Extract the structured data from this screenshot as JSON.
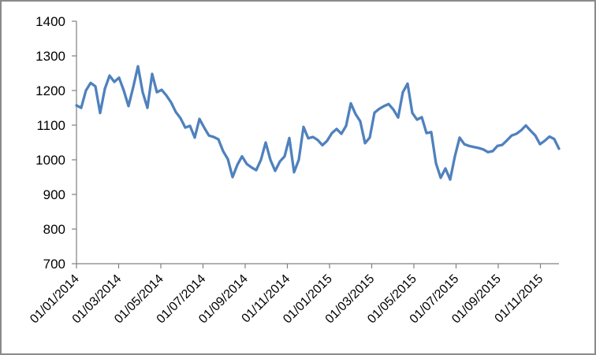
{
  "chart": {
    "background": "#FFFFFF",
    "border_color": "#8A8A8A"
  },
  "chart_data": {
    "type": "line",
    "title": "",
    "xlabel": "",
    "ylabel": "",
    "legend": "none",
    "grid": false,
    "ylim": [
      700,
      1400
    ],
    "y_tick_step": 100,
    "y_tick_labels": [
      "700",
      "800",
      "900",
      "1000",
      "1100",
      "1200",
      "1300",
      "1400"
    ],
    "x_tick_labels": [
      "01/01/2014",
      "01/03/2014",
      "01/05/2014",
      "01/07/2014",
      "01/09/2014",
      "01/11/2014",
      "01/01/2015",
      "01/03/2015",
      "01/05/2015",
      "01/07/2015",
      "01/09/2015",
      "01/11/2015"
    ],
    "axis_color": "#808080",
    "label_color": "#000000",
    "series": [
      {
        "name": "",
        "color": "#4F81BD",
        "line_width": 3.3,
        "values": [
          1157,
          1150,
          1200,
          1222,
          1212,
          1135,
          1205,
          1243,
          1225,
          1237,
          1200,
          1155,
          1210,
          1270,
          1195,
          1150,
          1248,
          1195,
          1202,
          1186,
          1166,
          1138,
          1120,
          1093,
          1098,
          1064,
          1118,
          1093,
          1070,
          1066,
          1059,
          1025,
          1002,
          950,
          985,
          1010,
          988,
          978,
          970,
          1000,
          1050,
          1000,
          968,
          995,
          1010,
          1063,
          964,
          1000,
          1095,
          1062,
          1066,
          1057,
          1042,
          1055,
          1077,
          1089,
          1075,
          1098,
          1163,
          1132,
          1111,
          1048,
          1064,
          1136,
          1147,
          1155,
          1161,
          1145,
          1122,
          1195,
          1220,
          1135,
          1116,
          1123,
          1077,
          1080,
          990,
          948,
          975,
          943,
          1010,
          1064,
          1045,
          1040,
          1037,
          1034,
          1030,
          1022,
          1025,
          1040,
          1043,
          1056,
          1070,
          1075,
          1085,
          1099,
          1084,
          1070,
          1045,
          1055,
          1067,
          1060,
          1032
        ]
      }
    ]
  }
}
